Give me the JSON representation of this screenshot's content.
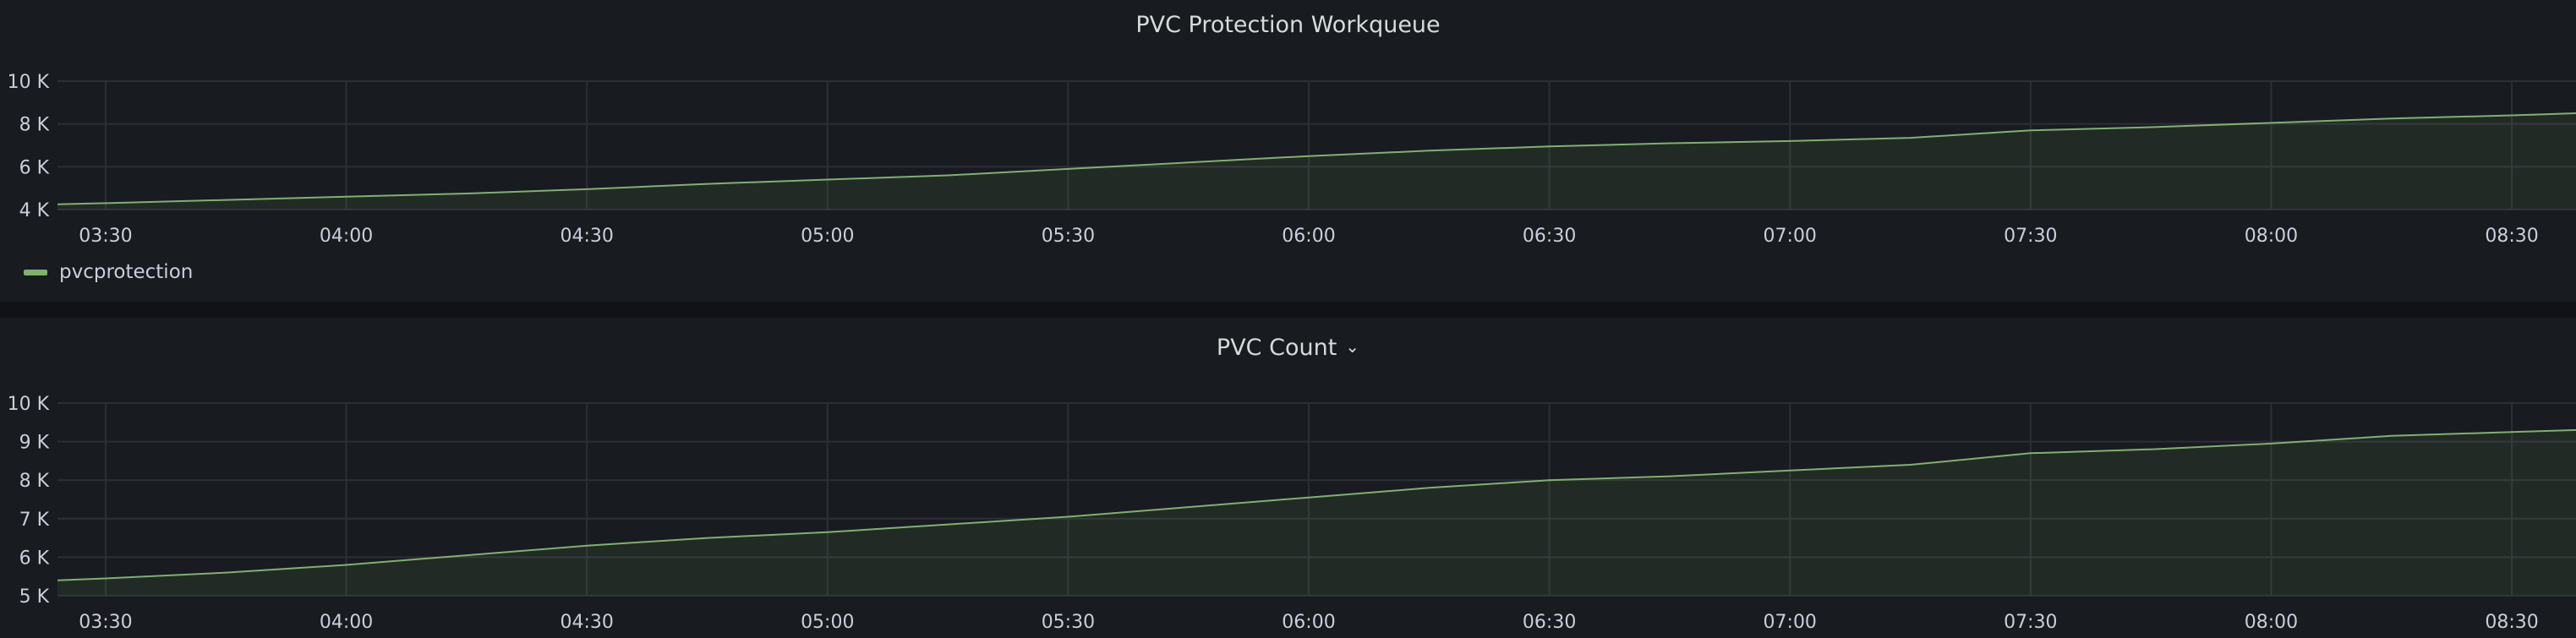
{
  "colors": {
    "series": "#7eb26d",
    "fill": "rgba(126,178,109,0.10)",
    "grid": "#2c2f36",
    "background": "#181b1f"
  },
  "panels": [
    {
      "title": "PVC Protection Workqueue",
      "has_menu_chevron": false,
      "legend": [
        "pvcprotection"
      ]
    },
    {
      "title": "PVC Count",
      "has_menu_chevron": true,
      "legend": []
    }
  ],
  "chart_data": [
    {
      "type": "area",
      "title": "PVC Protection Workqueue",
      "xlabel": "",
      "ylabel": "",
      "x_ticks": [
        "03:30",
        "04:00",
        "04:30",
        "05:00",
        "05:30",
        "06:00",
        "06:30",
        "07:00",
        "07:30",
        "08:00",
        "08:30"
      ],
      "y_ticks": [
        "4 K",
        "6 K",
        "8 K",
        "10 K"
      ],
      "ylim": [
        4000,
        10000
      ],
      "xlim": [
        "03:24",
        "08:38"
      ],
      "grid": true,
      "legend_position": "bottom-left",
      "series": [
        {
          "name": "pvcprotection",
          "x": [
            "03:24",
            "03:30",
            "03:45",
            "04:00",
            "04:15",
            "04:30",
            "04:45",
            "05:00",
            "05:15",
            "05:30",
            "05:45",
            "06:00",
            "06:15",
            "06:30",
            "06:45",
            "07:00",
            "07:15",
            "07:30",
            "07:45",
            "08:00",
            "08:15",
            "08:30",
            "08:38"
          ],
          "values": [
            4250,
            4300,
            4450,
            4600,
            4750,
            4950,
            5200,
            5400,
            5600,
            5900,
            6200,
            6500,
            6750,
            6950,
            7100,
            7200,
            7350,
            7700,
            7850,
            8050,
            8250,
            8400,
            8500
          ]
        }
      ]
    },
    {
      "type": "area",
      "title": "PVC Count",
      "xlabel": "",
      "ylabel": "",
      "x_ticks": [
        "03:30",
        "04:00",
        "04:30",
        "05:00",
        "05:30",
        "06:00",
        "06:30",
        "07:00",
        "07:30",
        "08:00",
        "08:30"
      ],
      "y_ticks": [
        "5 K",
        "6 K",
        "7 K",
        "8 K",
        "9 K",
        "10 K"
      ],
      "ylim": [
        5000,
        10000
      ],
      "xlim": [
        "03:24",
        "08:38"
      ],
      "grid": true,
      "legend_position": "none",
      "series": [
        {
          "x": [
            "03:24",
            "03:30",
            "03:45",
            "04:00",
            "04:15",
            "04:30",
            "04:45",
            "05:00",
            "05:15",
            "05:30",
            "05:45",
            "06:00",
            "06:15",
            "06:30",
            "06:45",
            "07:00",
            "07:15",
            "07:30",
            "07:45",
            "08:00",
            "08:15",
            "08:30",
            "08:38"
          ],
          "values": [
            5400,
            5450,
            5600,
            5800,
            6050,
            6300,
            6500,
            6650,
            6850,
            7050,
            7300,
            7550,
            7800,
            8000,
            8100,
            8250,
            8400,
            8700,
            8800,
            8950,
            9150,
            9250,
            9300
          ]
        }
      ]
    }
  ]
}
